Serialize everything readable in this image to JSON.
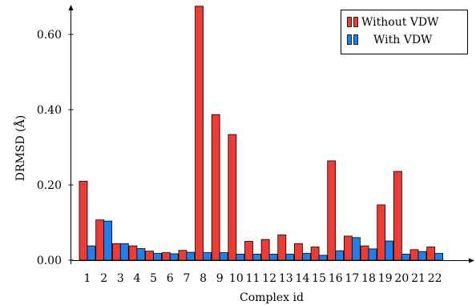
{
  "chart_data": {
    "type": "bar",
    "xlabel": "Complex id",
    "ylabel": "DRMSD (Å)",
    "ylim": [
      0,
      0.67
    ],
    "yticks": [
      "0.00",
      "0.20",
      "0.40",
      "0.60"
    ],
    "ytick_values": [
      0.0,
      0.2,
      0.4,
      0.6
    ],
    "categories": [
      "1",
      "2",
      "3",
      "4",
      "5",
      "6",
      "7",
      "8",
      "9",
      "10",
      "11",
      "12",
      "13",
      "14",
      "15",
      "16",
      "17",
      "18",
      "19",
      "20",
      "21",
      "22"
    ],
    "series": [
      {
        "name": "Without VDW",
        "color": "#ee3b33",
        "values": [
          0.21,
          0.107,
          0.044,
          0.038,
          0.024,
          0.02,
          0.026,
          0.675,
          0.387,
          0.334,
          0.05,
          0.055,
          0.067,
          0.044,
          0.035,
          0.264,
          0.064,
          0.038,
          0.147,
          0.236,
          0.028,
          0.035
        ]
      },
      {
        "name": "With VDW",
        "color": "#1f7fee",
        "values": [
          0.038,
          0.104,
          0.044,
          0.031,
          0.018,
          0.017,
          0.021,
          0.02,
          0.02,
          0.016,
          0.016,
          0.016,
          0.016,
          0.018,
          0.013,
          0.025,
          0.06,
          0.03,
          0.051,
          0.016,
          0.023,
          0.018
        ]
      }
    ],
    "legend_position": "top-right",
    "grid": false
  }
}
